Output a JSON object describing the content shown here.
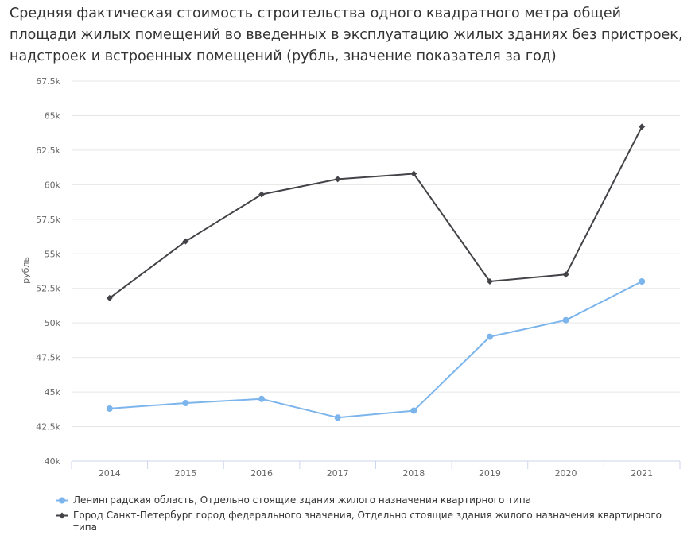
{
  "chart_data": {
    "type": "line",
    "title": "Средняя фактическая стоимость строительства одного квадратного метра общей площади жилых помещений во введенных в эксплуатацию жилых зданиях без пристроек, надстроек и встроенных помещений (рубль, значение показателя за год)",
    "xlabel": "",
    "ylabel": "рубль",
    "categories": [
      "2014",
      "2015",
      "2016",
      "2017",
      "2018",
      "2019",
      "2020",
      "2021"
    ],
    "ylim": [
      40000,
      67500
    ],
    "yticks": [
      40000,
      42500,
      45000,
      47500,
      50000,
      52500,
      55000,
      57500,
      60000,
      62500,
      65000,
      67500
    ],
    "ytick_labels": [
      "40k",
      "42.5k",
      "45k",
      "47.5k",
      "50k",
      "52.5k",
      "55k",
      "57.5k",
      "60k",
      "62.5k",
      "65k",
      "67.5k"
    ],
    "grid": true,
    "legend_position": "bottom-left",
    "series": [
      {
        "name": "Ленинградская область, Отдельно стоящие здания жилого назначения квартирного типа",
        "color": "#7cb5ec",
        "marker": "circle",
        "values": [
          43800,
          44200,
          44500,
          43150,
          43650,
          49000,
          50200,
          53000
        ]
      },
      {
        "name": "Город Санкт-Петербург город федерального значения, Отдельно стоящие здания жилого назначения квартирного типа",
        "color": "#434348",
        "marker": "diamond",
        "values": [
          51800,
          55900,
          59300,
          60400,
          60800,
          53000,
          53500,
          64200
        ]
      }
    ]
  }
}
